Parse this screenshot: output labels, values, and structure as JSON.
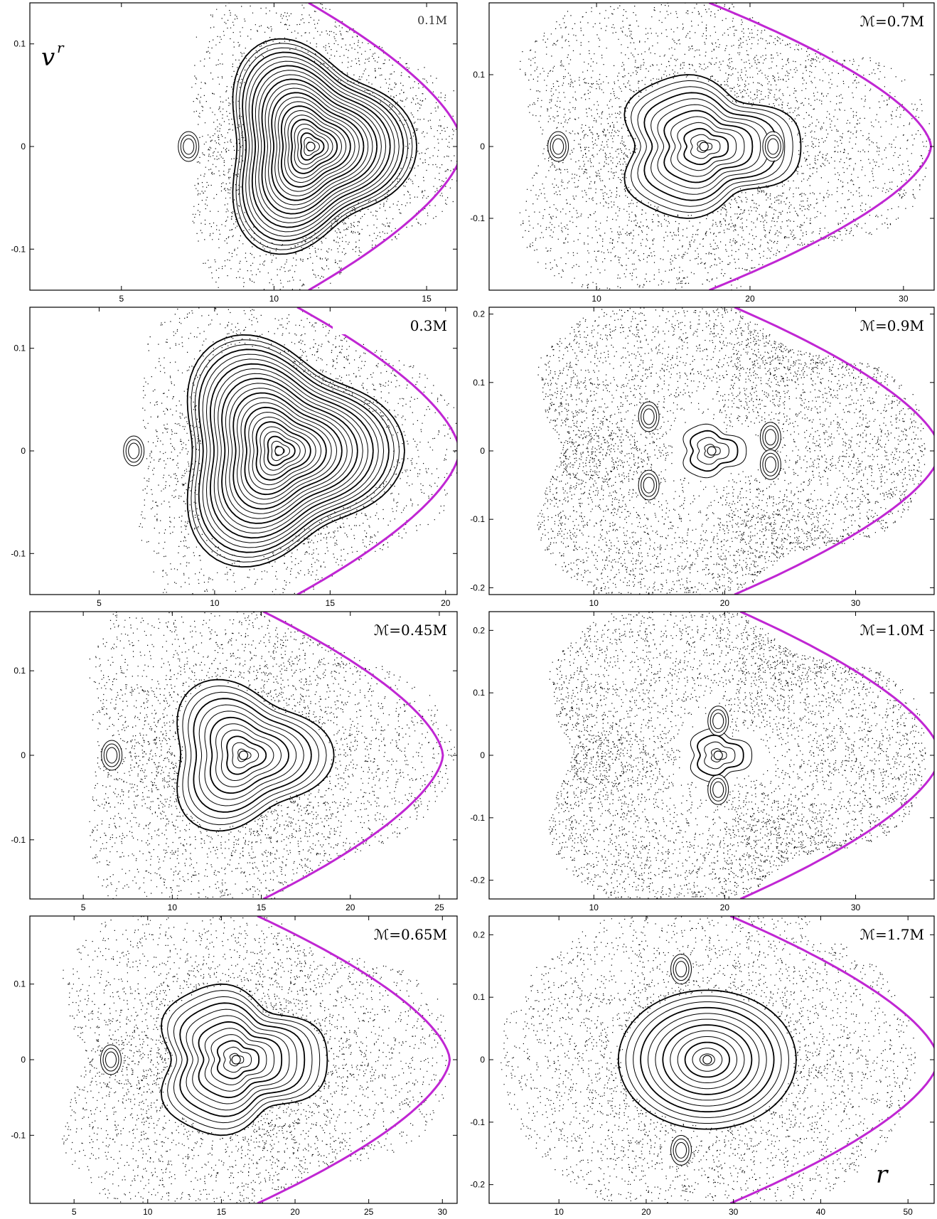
{
  "figure": {
    "ylabel": "v",
    "ylabel_superscript": "r",
    "xlabel": "r",
    "boundary_color": "#C026D3",
    "point_color": "#000000"
  },
  "chart_data": [
    {
      "type": "scatter",
      "title": "0.1M",
      "xlim": [
        2,
        16
      ],
      "ylim": [
        -0.14,
        0.14
      ],
      "xticks": [
        "5",
        "10",
        "15"
      ],
      "xtick_values": [
        5,
        10,
        15
      ],
      "yticks": [
        "0.1",
        "0",
        "-0.1"
      ],
      "ytick_values": [
        0.1,
        0,
        -0.1
      ],
      "center": [
        11.2,
        0
      ],
      "bound_x": 16.2,
      "bound_y": 0.13,
      "shape": "triangle",
      "islands": [
        [
          7.2,
          0
        ]
      ],
      "density": "regular"
    },
    {
      "type": "scatter",
      "title": "ℳ=0.7M",
      "xlim": [
        3,
        32
      ],
      "ylim": [
        -0.2,
        0.2
      ],
      "xticks": [
        "10",
        "20",
        "30"
      ],
      "xtick_values": [
        10,
        20,
        30
      ],
      "yticks": [
        "0.1",
        "0",
        "-0.1"
      ],
      "ytick_values": [
        0.1,
        0,
        -0.1
      ],
      "center": [
        17,
        0
      ],
      "bound_x": 31.8,
      "bound_y": 0.19,
      "shape": "heart",
      "islands": [
        [
          7.5,
          0
        ],
        [
          21.5,
          0
        ]
      ],
      "density": "mixed"
    },
    {
      "type": "scatter",
      "title": "0.3M",
      "xlim": [
        2,
        20.5
      ],
      "ylim": [
        -0.14,
        0.14
      ],
      "xticks": [
        "5",
        "10",
        "15",
        "20"
      ],
      "xtick_values": [
        5,
        10,
        15,
        20
      ],
      "yticks": [
        "0.1",
        "0",
        "-0.1"
      ],
      "ytick_values": [
        0.1,
        0,
        -0.1
      ],
      "center": [
        12.8,
        0
      ],
      "bound_x": 20.6,
      "bound_y": 0.14,
      "shape": "triangle",
      "islands": [
        [
          6.5,
          0
        ]
      ],
      "density": "regular"
    },
    {
      "type": "scatter",
      "title": "ℳ=0.9M",
      "xlim": [
        2,
        36
      ],
      "ylim": [
        -0.21,
        0.21
      ],
      "xticks": [
        "10",
        "20",
        "30"
      ],
      "xtick_values": [
        10,
        20,
        30
      ],
      "yticks": [
        "0.2",
        "0.1",
        "0",
        "-0.1",
        "-0.2"
      ],
      "ytick_values": [
        0.2,
        0.1,
        0,
        -0.1,
        -0.2
      ],
      "center": [
        19,
        0
      ],
      "bound_x": 36.5,
      "bound_y": 0.21,
      "shape": "heart",
      "islands": [
        [
          14.2,
          0.05
        ],
        [
          14.2,
          -0.05
        ],
        [
          23.5,
          0.02
        ],
        [
          23.5,
          -0.02
        ]
      ],
      "density": "chaotic"
    },
    {
      "type": "scatter",
      "title": "ℳ=0.45M",
      "xlim": [
        2,
        26
      ],
      "ylim": [
        -0.17,
        0.17
      ],
      "xticks": [
        "5",
        "10",
        "15",
        "20",
        "25"
      ],
      "xtick_values": [
        5,
        10,
        15,
        20,
        25
      ],
      "yticks": [
        "0.1",
        "0",
        "-0.1"
      ],
      "ytick_values": [
        0.1,
        0,
        -0.1
      ],
      "center": [
        14,
        0
      ],
      "bound_x": 25.2,
      "bound_y": 0.17,
      "shape": "triangle",
      "islands": [
        [
          6.6,
          0
        ]
      ],
      "density": "mixed"
    },
    {
      "type": "scatter",
      "title": "ℳ=1.0M",
      "xlim": [
        2,
        36
      ],
      "ylim": [
        -0.23,
        0.23
      ],
      "xticks": [
        "10",
        "20",
        "30"
      ],
      "xtick_values": [
        10,
        20,
        30
      ],
      "yticks": [
        "0.2",
        "0.1",
        "0",
        "-0.1",
        "-0.2"
      ],
      "ytick_values": [
        0.2,
        0.1,
        0,
        -0.1,
        -0.2
      ],
      "center": [
        19.5,
        0
      ],
      "bound_x": 36.5,
      "bound_y": 0.23,
      "shape": "heart",
      "islands": [
        [
          19.5,
          0.055
        ],
        [
          19.5,
          -0.055
        ]
      ],
      "density": "chaotic"
    },
    {
      "type": "scatter",
      "title": "ℳ=0.65M",
      "xlim": [
        2,
        31
      ],
      "ylim": [
        -0.19,
        0.19
      ],
      "xticks": [
        "5",
        "10",
        "15",
        "20",
        "25",
        "30"
      ],
      "xtick_values": [
        5,
        10,
        15,
        20,
        25,
        30
      ],
      "yticks": [
        "0.1",
        "0",
        "-0.1"
      ],
      "ytick_values": [
        0.1,
        0,
        -0.1
      ],
      "center": [
        16,
        0
      ],
      "bound_x": 30.5,
      "bound_y": 0.19,
      "shape": "heart",
      "islands": [
        [
          7.5,
          0
        ]
      ],
      "density": "mixed"
    },
    {
      "type": "scatter",
      "title": "ℳ=1.7M",
      "xlim": [
        2,
        53
      ],
      "ylim": [
        -0.23,
        0.23
      ],
      "xticks": [
        "10",
        "20",
        "30",
        "40",
        "50"
      ],
      "xtick_values": [
        10,
        20,
        30,
        40,
        50
      ],
      "yticks": [
        "0.2",
        "0.1",
        "0",
        "-0.1",
        "-0.2"
      ],
      "ytick_values": [
        0.2,
        0.1,
        0,
        -0.1,
        -0.2
      ],
      "center": [
        27,
        0
      ],
      "bound_x": 53.5,
      "bound_y": 0.23,
      "shape": "oval",
      "islands": [
        [
          24,
          0.145
        ],
        [
          24,
          -0.145
        ]
      ],
      "density": "mixed"
    }
  ]
}
